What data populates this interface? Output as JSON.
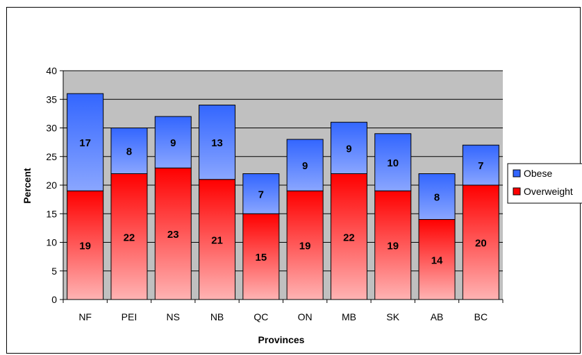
{
  "chart_data": {
    "type": "bar",
    "stacked": true,
    "categories": [
      "NF",
      "PEI",
      "NS",
      "NB",
      "QC",
      "ON",
      "MB",
      "SK",
      "AB",
      "BC"
    ],
    "series": [
      {
        "name": "Overweight",
        "values": [
          19,
          22,
          23,
          21,
          15,
          19,
          22,
          19,
          14,
          20
        ],
        "color": "#ff0000"
      },
      {
        "name": "Obese",
        "values": [
          17,
          8,
          9,
          13,
          7,
          9,
          9,
          10,
          8,
          7
        ],
        "color": "#3366ff"
      }
    ],
    "legend_order": [
      "Obese",
      "Overweight"
    ],
    "title": "",
    "xlabel": "Provinces",
    "ylabel": "Percent",
    "ylim": [
      0,
      40
    ],
    "yticks": [
      0,
      5,
      10,
      15,
      20,
      25,
      30,
      35,
      40
    ],
    "grid": true,
    "plot_background": "#c0c0c0",
    "legend_position": "right"
  }
}
